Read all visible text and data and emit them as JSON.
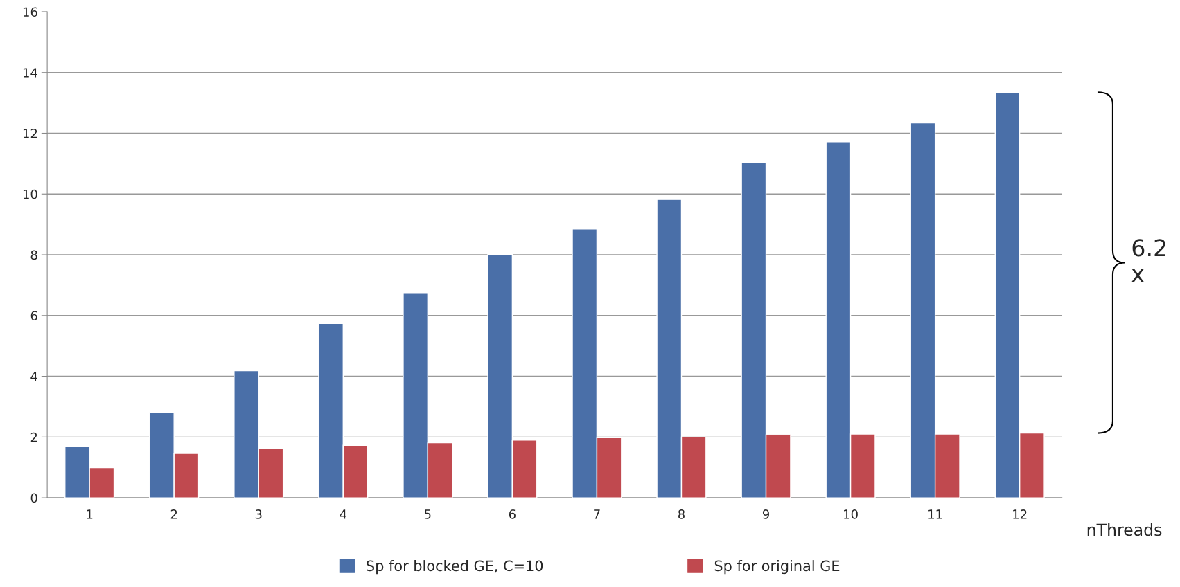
{
  "chart_data": {
    "type": "bar",
    "xlabel": "nThreads",
    "categories": [
      "1",
      "2",
      "3",
      "4",
      "5",
      "6",
      "7",
      "8",
      "9",
      "10",
      "11",
      "12"
    ],
    "series": [
      {
        "name": "Sp for blocked GE, C=10",
        "color": "#4a6fa8",
        "values": [
          1.68,
          2.82,
          4.18,
          5.74,
          6.73,
          8.01,
          8.85,
          9.82,
          11.03,
          11.72,
          12.34,
          13.35
        ]
      },
      {
        "name": "Sp for original GE",
        "color": "#c0494f",
        "values": [
          0.99,
          1.46,
          1.63,
          1.73,
          1.81,
          1.9,
          1.98,
          2.0,
          2.08,
          2.1,
          2.1,
          2.13
        ]
      }
    ],
    "ylim": [
      0,
      16
    ],
    "yticks": [
      0,
      2,
      4,
      6,
      8,
      10,
      12,
      14,
      16
    ],
    "grid": "y",
    "legend": "bottom",
    "annotations": [
      "6.2\nx"
    ]
  }
}
